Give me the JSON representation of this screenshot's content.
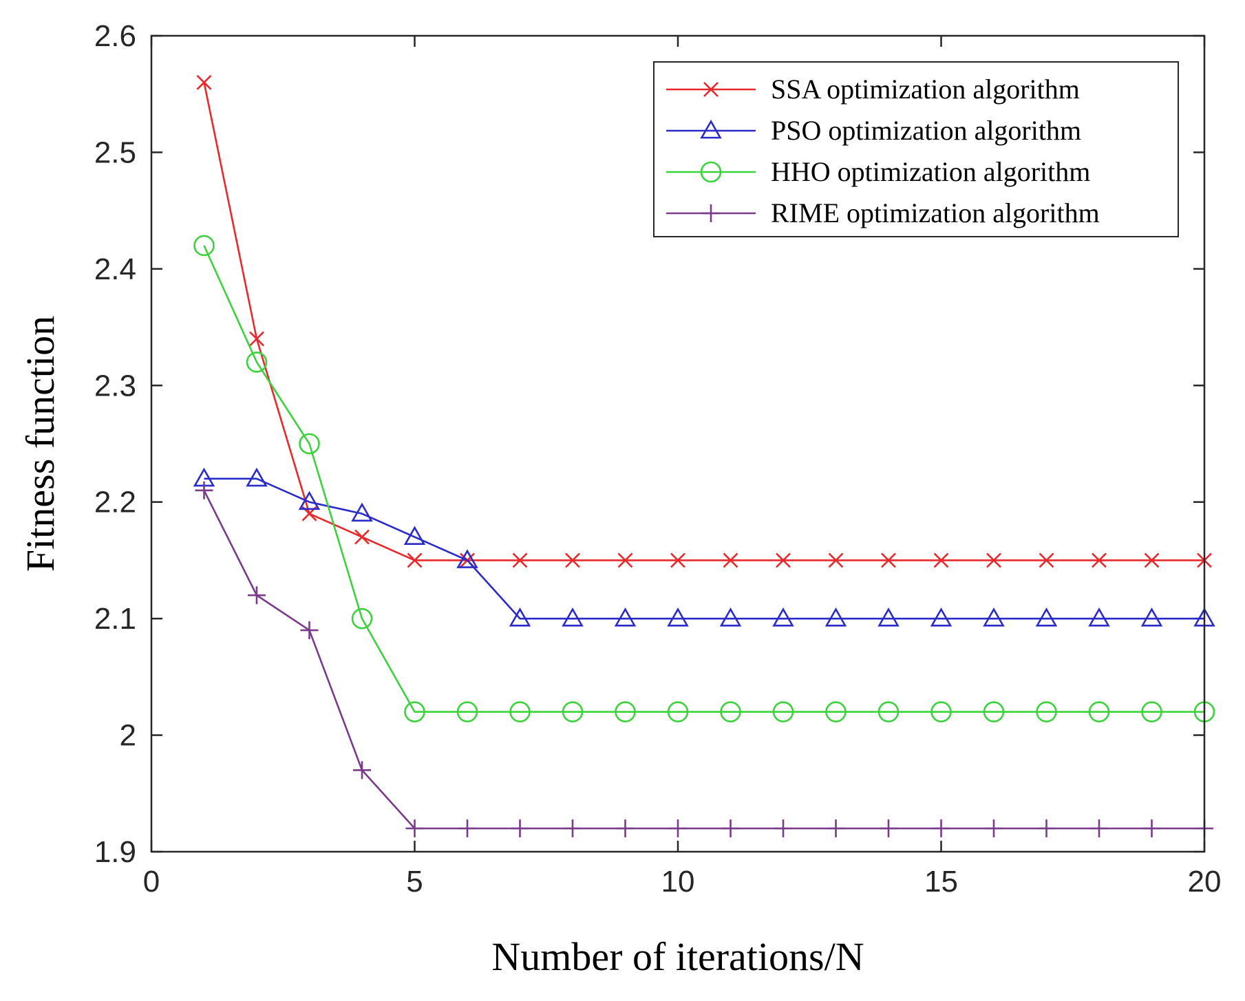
{
  "chart_data": {
    "type": "line",
    "title": "",
    "xlabel": "Number of iterations/N",
    "ylabel": "Fitness function",
    "xlim": [
      0,
      20
    ],
    "ylim": [
      1.9,
      2.6
    ],
    "xticks": [
      0,
      5,
      10,
      15,
      20
    ],
    "yticks": [
      1.9,
      2.0,
      2.1,
      2.2,
      2.3,
      2.4,
      2.5,
      2.6
    ],
    "xtick_labels": [
      "0",
      "5",
      "10",
      "15",
      "20"
    ],
    "ytick_labels": [
      "1.9",
      "2",
      "2.1",
      "2.2",
      "2.3",
      "2.4",
      "2.5",
      "2.6"
    ],
    "grid": false,
    "legend_position": "top-right",
    "x": [
      1,
      2,
      3,
      4,
      5,
      6,
      7,
      8,
      9,
      10,
      11,
      12,
      13,
      14,
      15,
      16,
      17,
      18,
      19,
      20
    ],
    "series": [
      {
        "name": "SSA optimization algorithm",
        "color": "#e8282a",
        "marker": "x",
        "values": [
          2.56,
          2.34,
          2.19,
          2.17,
          2.15,
          2.15,
          2.15,
          2.15,
          2.15,
          2.15,
          2.15,
          2.15,
          2.15,
          2.15,
          2.15,
          2.15,
          2.15,
          2.15,
          2.15,
          2.15
        ]
      },
      {
        "name": "PSO optimization algorithm",
        "color": "#2a2ac8",
        "marker": "triangle",
        "values": [
          2.22,
          2.22,
          2.2,
          2.19,
          2.17,
          2.15,
          2.1,
          2.1,
          2.1,
          2.1,
          2.1,
          2.1,
          2.1,
          2.1,
          2.1,
          2.1,
          2.1,
          2.1,
          2.1,
          2.1
        ]
      },
      {
        "name": "HHO optimization algorithm",
        "color": "#3cd23c",
        "marker": "circle",
        "values": [
          2.42,
          2.32,
          2.25,
          2.1,
          2.02,
          2.02,
          2.02,
          2.02,
          2.02,
          2.02,
          2.02,
          2.02,
          2.02,
          2.02,
          2.02,
          2.02,
          2.02,
          2.02,
          2.02,
          2.02
        ]
      },
      {
        "name": "RIME optimization algorithm",
        "color": "#7a3a8a",
        "marker": "plus",
        "values": [
          2.21,
          2.12,
          2.09,
          1.97,
          1.92,
          1.92,
          1.92,
          1.92,
          1.92,
          1.92,
          1.92,
          1.92,
          1.92,
          1.92,
          1.92,
          1.92,
          1.92,
          1.92,
          1.92,
          1.92
        ]
      }
    ]
  }
}
